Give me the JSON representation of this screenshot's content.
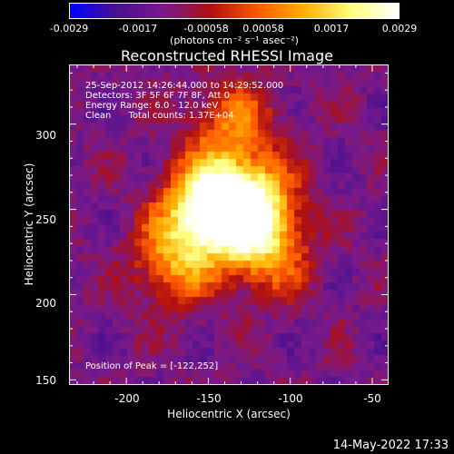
{
  "colorbar": {
    "ticks": [
      "-0.0029",
      "-0.0017",
      "-0.00058",
      "0.00058",
      "0.0017",
      "0.0029"
    ],
    "units": "(photons cm⁻² s⁻¹ asec⁻²)",
    "colormap": [
      "#0000ff",
      "#4b1090",
      "#7a1a8a",
      "#b01010",
      "#ff5a00",
      "#ffb000",
      "#ffff80",
      "#ffffff"
    ]
  },
  "title": "Reconstructed RHESSI Image",
  "info": {
    "line1": "25-Sep-2012 14:26:44.000 to 14:29:52.000",
    "line2": "Detectors: 3F 5F 6F 7F 8F, Att 0",
    "line3": "Energy Range: 6.0 - 12.0 keV",
    "line4": "Clean      Total counts: 1.37E+04",
    "peak": "Position of Peak = [-122,252]"
  },
  "axes": {
    "xlabel": "Heliocentric X (arcsec)",
    "ylabel": "Heliocentric Y (arcsec)",
    "xticks": [
      "-200",
      "-150",
      "-100",
      "-50"
    ],
    "yticks": [
      "300",
      "250",
      "200",
      "150"
    ],
    "xrange": [
      -235,
      -40
    ],
    "yrange": [
      147,
      335
    ]
  },
  "image_description": {
    "sources": [
      {
        "x": -150,
        "y": 252,
        "intensity": 1.0
      },
      {
        "x": -125,
        "y": 252,
        "intensity": 0.95
      },
      {
        "x": -135,
        "y": 300,
        "intensity": 0.45
      },
      {
        "x": -170,
        "y": 220,
        "intensity": 0.55
      },
      {
        "x": -115,
        "y": 225,
        "intensity": 0.5
      }
    ]
  },
  "datestamp": "14-May-2022 17:33"
}
